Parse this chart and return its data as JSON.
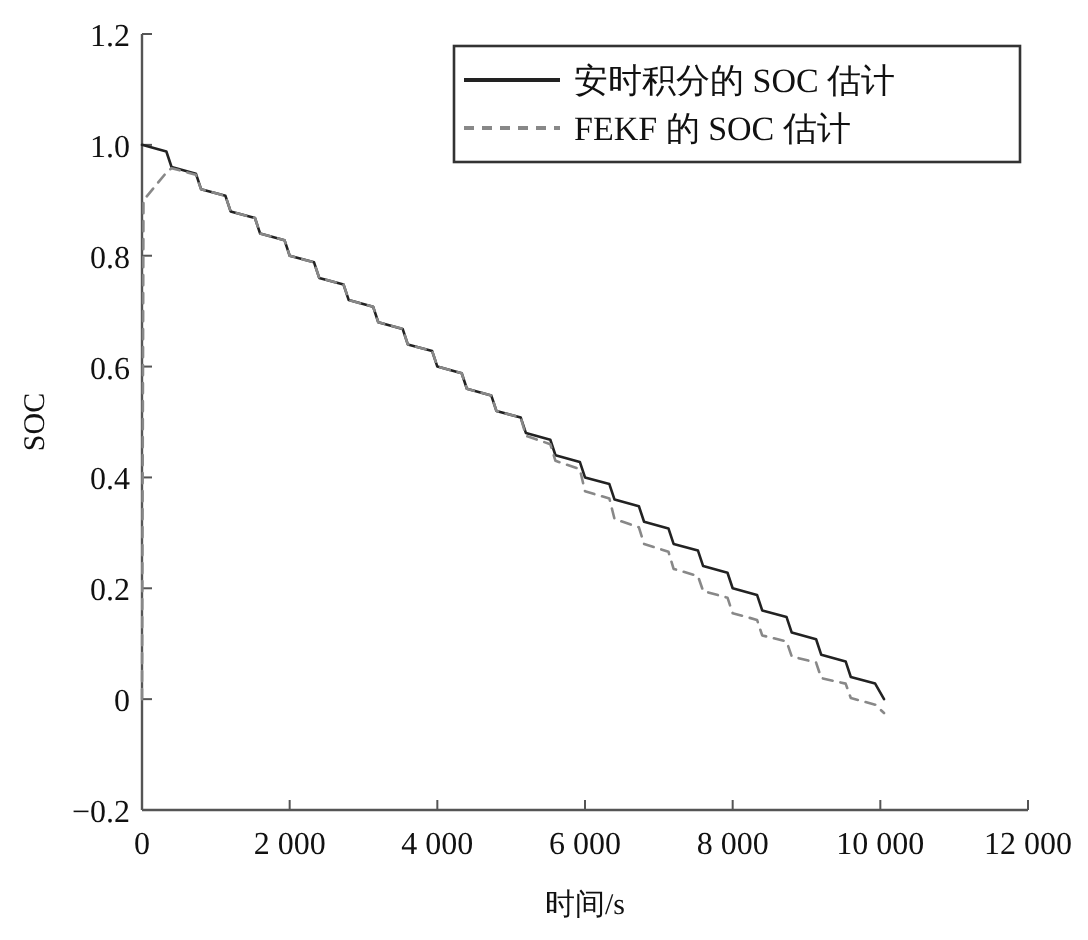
{
  "chart_data": {
    "type": "line",
    "xlabel": "时间/s",
    "ylabel": "SOC",
    "xlim": [
      0,
      12000
    ],
    "ylim": [
      -0.2,
      1.2
    ],
    "xticks": [
      0,
      {
        "value": 2000,
        "label": "2 000"
      },
      {
        "value": 4000,
        "label": "4 000"
      },
      {
        "value": 6000,
        "label": "6 000"
      },
      {
        "value": 8000,
        "label": "8 000"
      },
      {
        "value": 10000,
        "label": "10 000"
      },
      {
        "value": 12000,
        "label": "12 000"
      }
    ],
    "yticks": [
      {
        "value": -0.2,
        "label": "−0.2"
      },
      0,
      0.2,
      0.4,
      0.6,
      0.8,
      {
        "value": 1.0,
        "label": "1.0"
      },
      1.2
    ],
    "legend": "top right",
    "grid": false,
    "series": [
      {
        "name": "安时积分的 SOC 估计",
        "color": "#222222",
        "line_style": "solid",
        "x": [
          0,
          330,
          400,
          730,
          800,
          1130,
          1200,
          1530,
          1600,
          1930,
          2000,
          2330,
          2400,
          2730,
          2800,
          3130,
          3200,
          3530,
          3600,
          3930,
          4000,
          4330,
          4400,
          4730,
          4800,
          5130,
          5200,
          5530,
          5600,
          5930,
          6000,
          6330,
          6400,
          6730,
          6800,
          7130,
          7200,
          7530,
          7600,
          7930,
          8000,
          8330,
          8400,
          8730,
          8800,
          9130,
          9200,
          9530,
          9600,
          9930,
          10050
        ],
        "values": [
          1.0,
          0.988,
          0.96,
          0.948,
          0.92,
          0.908,
          0.88,
          0.868,
          0.84,
          0.828,
          0.8,
          0.788,
          0.76,
          0.748,
          0.72,
          0.708,
          0.68,
          0.668,
          0.64,
          0.628,
          0.6,
          0.588,
          0.56,
          0.548,
          0.52,
          0.508,
          0.48,
          0.468,
          0.44,
          0.428,
          0.4,
          0.388,
          0.36,
          0.348,
          0.32,
          0.308,
          0.28,
          0.268,
          0.24,
          0.228,
          0.2,
          0.188,
          0.16,
          0.148,
          0.12,
          0.108,
          0.08,
          0.068,
          0.04,
          0.028,
          0.0
        ]
      },
      {
        "name": "FEKF 的 SOC 估计",
        "color": "#888888",
        "line_style": "dashed",
        "x": [
          0,
          20,
          330,
          400,
          730,
          800,
          1130,
          1200,
          1530,
          1600,
          1930,
          2000,
          2330,
          2400,
          2730,
          2800,
          3130,
          3200,
          3530,
          3600,
          3930,
          4000,
          4330,
          4400,
          4730,
          4800,
          5130,
          5200,
          5530,
          5600,
          5930,
          6000,
          6330,
          6400,
          6730,
          6800,
          7130,
          7200,
          7530,
          7600,
          7930,
          8000,
          8330,
          8400,
          8730,
          8800,
          9130,
          9200,
          9530,
          9600,
          9930,
          10050
        ],
        "values": [
          0.0,
          0.9,
          0.95,
          0.958,
          0.946,
          0.92,
          0.908,
          0.88,
          0.868,
          0.84,
          0.828,
          0.8,
          0.788,
          0.76,
          0.748,
          0.72,
          0.708,
          0.68,
          0.668,
          0.64,
          0.628,
          0.6,
          0.588,
          0.56,
          0.548,
          0.52,
          0.508,
          0.475,
          0.46,
          0.43,
          0.415,
          0.375,
          0.362,
          0.325,
          0.31,
          0.28,
          0.266,
          0.235,
          0.222,
          0.195,
          0.183,
          0.155,
          0.143,
          0.115,
          0.104,
          0.077,
          0.066,
          0.038,
          0.028,
          0.002,
          -0.01,
          -0.025
        ]
      }
    ]
  }
}
